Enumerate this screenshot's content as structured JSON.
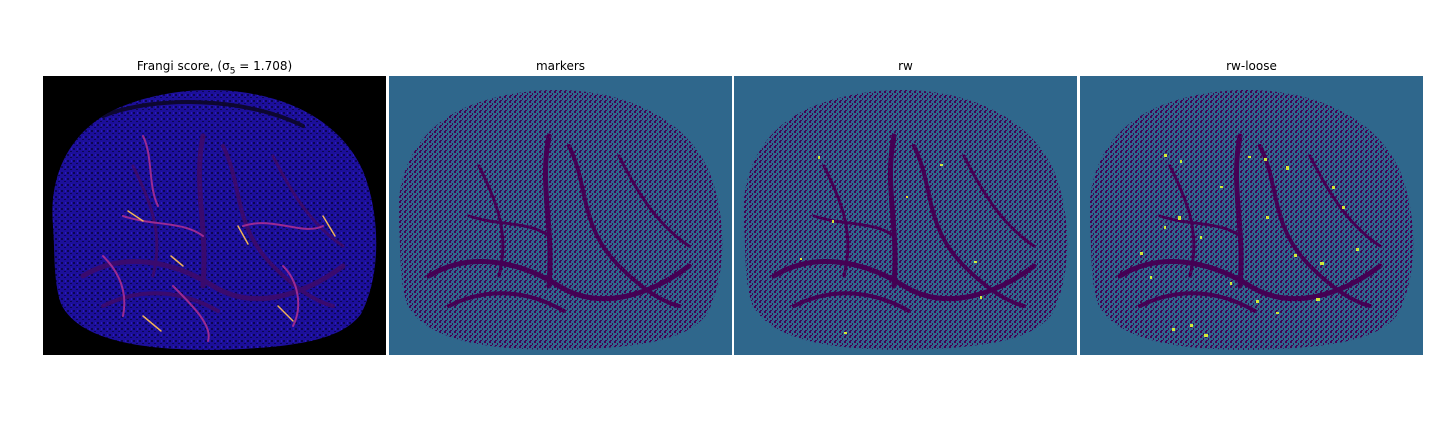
{
  "panels": [
    {
      "title": "Frangi score, (σ",
      "title_sub": "5",
      "title_tail": " = 1.708)",
      "colormap": "plasma"
    },
    {
      "title": "markers",
      "colormap": "viridis"
    },
    {
      "title": "rw",
      "colormap": "viridis"
    },
    {
      "title": "rw-loose",
      "colormap": "viridis"
    }
  ],
  "colors": {
    "frangi_background": "#000000",
    "frangi_tissue": "#1c0f9a",
    "frangi_vessel_dark": "#3a0a6e",
    "frangi_vessel_mid": "#9b2a92",
    "frangi_vessel_hot": "#f0b15a",
    "label_background": "#2f678c",
    "label_tissue": "#440154",
    "label_highlight": "#d4e83a"
  }
}
